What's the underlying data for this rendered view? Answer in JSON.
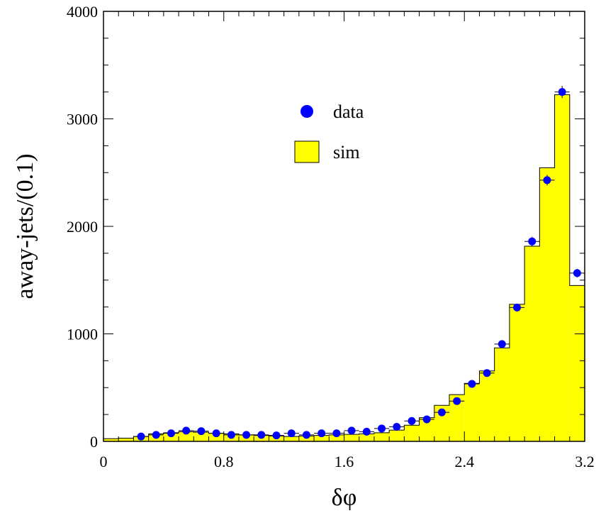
{
  "chart_data": {
    "type": "bar",
    "title": "",
    "xlabel": "δφ",
    "ylabel": "away-jets/(0.1)",
    "xlim": [
      0,
      3.2
    ],
    "ylim": [
      0,
      4000
    ],
    "bin_width": 0.1,
    "xticks": [
      "0",
      "0.8",
      "1.6",
      "2.4",
      "3.2"
    ],
    "yticks": [
      "0",
      "1000",
      "2000",
      "3000",
      "4000"
    ],
    "legend_position": "upper-center",
    "series": [
      {
        "name": "data",
        "kind": "points",
        "color": "#0000ff",
        "x": [
          0.25,
          0.35,
          0.45,
          0.55,
          0.65,
          0.75,
          0.85,
          0.95,
          1.05,
          1.15,
          1.25,
          1.35,
          1.45,
          1.55,
          1.65,
          1.75,
          1.85,
          1.95,
          2.05,
          2.15,
          2.25,
          2.35,
          2.45,
          2.55,
          2.65,
          2.75,
          2.85,
          2.95,
          3.05,
          3.15
        ],
        "values": [
          45,
          60,
          75,
          100,
          95,
          75,
          60,
          60,
          60,
          55,
          75,
          60,
          75,
          75,
          100,
          90,
          120,
          135,
          190,
          205,
          270,
          375,
          535,
          635,
          905,
          1245,
          1860,
          2430,
          3250,
          1565
        ]
      },
      {
        "name": "sim",
        "kind": "histogram",
        "color": "#ffff00",
        "edges": [
          0,
          0.1,
          0.2,
          0.3,
          0.4,
          0.5,
          0.6,
          0.7,
          0.8,
          0.9,
          1.0,
          1.1,
          1.2,
          1.3,
          1.4,
          1.5,
          1.6,
          1.7,
          1.8,
          1.9,
          2.0,
          2.1,
          2.2,
          2.3,
          2.4,
          2.5,
          2.6,
          2.7,
          2.8,
          2.9,
          3.0,
          3.1,
          3.2
        ],
        "values": [
          25,
          30,
          45,
          70,
          80,
          90,
          85,
          75,
          70,
          60,
          55,
          50,
          45,
          50,
          55,
          60,
          65,
          70,
          80,
          105,
          150,
          220,
          335,
          435,
          540,
          655,
          870,
          1275,
          1815,
          2545,
          3225,
          1450
        ]
      }
    ]
  }
}
